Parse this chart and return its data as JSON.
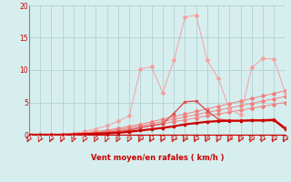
{
  "x": [
    0,
    1,
    2,
    3,
    4,
    5,
    6,
    7,
    8,
    9,
    10,
    11,
    12,
    13,
    14,
    15,
    16,
    17,
    18,
    19,
    20,
    21,
    22,
    23
  ],
  "line_straight1": [
    0,
    0,
    0,
    0.05,
    0.15,
    0.3,
    0.5,
    0.7,
    1.0,
    1.3,
    1.6,
    2.0,
    2.4,
    2.8,
    3.2,
    3.6,
    4.0,
    4.4,
    4.8,
    5.2,
    5.6,
    6.0,
    6.4,
    6.8
  ],
  "line_straight2": [
    0,
    0,
    0,
    0.05,
    0.1,
    0.2,
    0.35,
    0.55,
    0.8,
    1.05,
    1.35,
    1.7,
    2.05,
    2.4,
    2.75,
    3.1,
    3.45,
    3.8,
    4.15,
    4.5,
    4.85,
    5.2,
    5.55,
    5.9
  ],
  "line_straight3": [
    0,
    0,
    0,
    0.03,
    0.08,
    0.15,
    0.28,
    0.42,
    0.62,
    0.85,
    1.1,
    1.4,
    1.7,
    2.0,
    2.3,
    2.6,
    2.9,
    3.2,
    3.5,
    3.8,
    4.1,
    4.4,
    4.7,
    5.0
  ],
  "line_peak_light": [
    0,
    0,
    0,
    0.05,
    0.2,
    0.5,
    0.9,
    1.4,
    2.1,
    2.9,
    10.2,
    10.5,
    6.5,
    11.5,
    18.2,
    18.5,
    11.5,
    8.7,
    3.9,
    3.1,
    10.4,
    11.8,
    11.7,
    6.5
  ],
  "line_peak_medium": [
    0,
    0,
    0,
    0,
    0.05,
    0.15,
    0.25,
    0.35,
    0.5,
    0.65,
    1.1,
    1.4,
    1.7,
    3.3,
    5.1,
    5.2,
    3.7,
    2.4,
    2.2,
    2.2,
    2.3,
    2.3,
    2.4,
    1.1
  ],
  "line_flat_dark": [
    0,
    0,
    0,
    0,
    0.05,
    0.1,
    0.15,
    0.2,
    0.3,
    0.45,
    0.65,
    0.85,
    1.05,
    1.3,
    1.6,
    1.8,
    2.0,
    2.1,
    2.15,
    2.15,
    2.2,
    2.2,
    2.25,
    0.9
  ],
  "color_light": "#f08080",
  "color_peak_light": "#f5a0a0",
  "color_medium": "#e05050",
  "color_dark": "#cc0000",
  "bg_color": "#d6eeee",
  "grid_color": "#aacccc",
  "axis_color": "#cc0000",
  "left_spine_color": "#888888",
  "xlabel": "Vent moyen/en rafales ( km/h )",
  "ylim": [
    0,
    20
  ],
  "xlim": [
    0,
    23
  ],
  "yticks": [
    0,
    5,
    10,
    15,
    20
  ],
  "xticks": [
    0,
    1,
    2,
    3,
    4,
    5,
    6,
    7,
    8,
    9,
    10,
    11,
    12,
    13,
    14,
    15,
    16,
    17,
    18,
    19,
    20,
    21,
    22,
    23
  ]
}
